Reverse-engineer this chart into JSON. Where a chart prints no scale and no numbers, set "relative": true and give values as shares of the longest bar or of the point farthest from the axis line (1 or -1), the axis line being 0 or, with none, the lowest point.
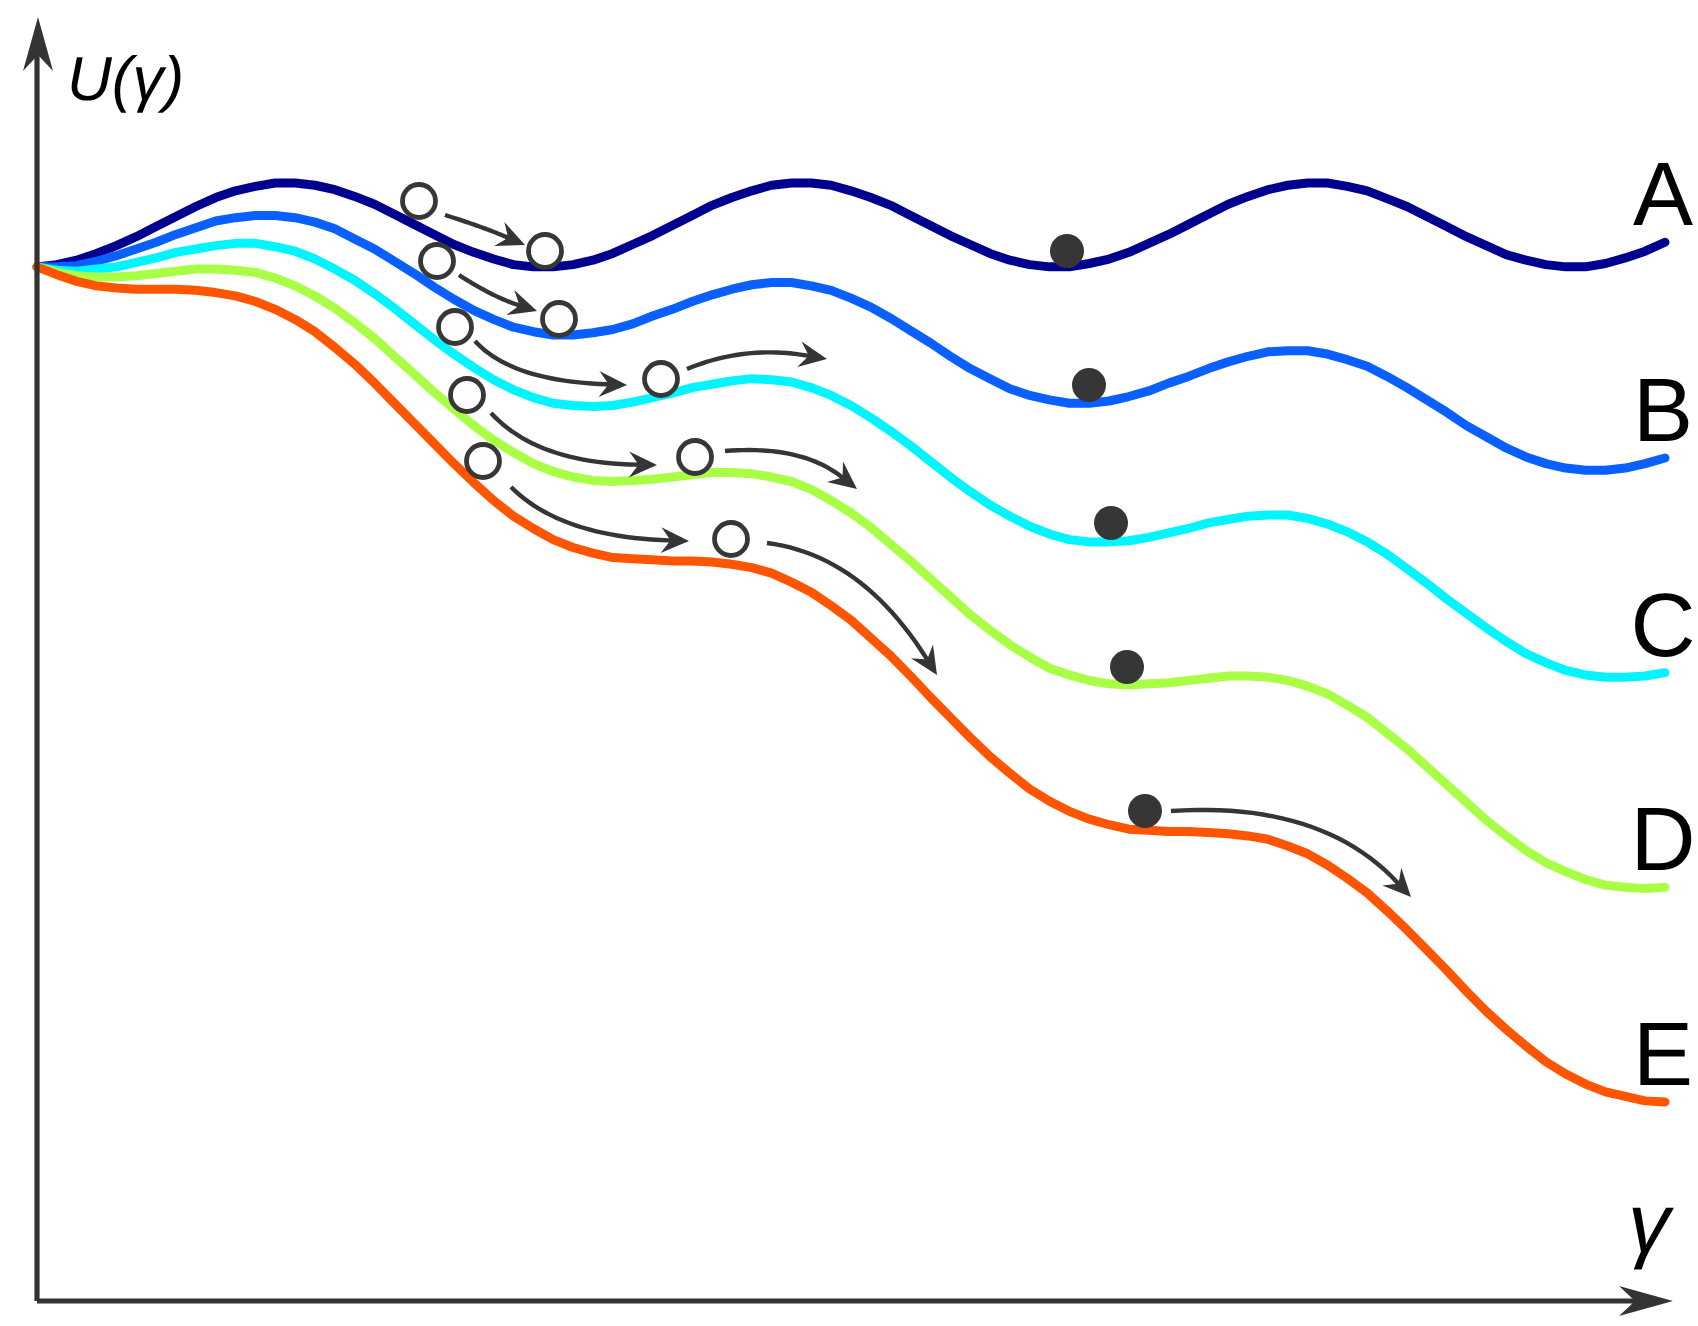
{
  "chart_data": {
    "type": "line",
    "relative": true,
    "xlabel": "γ",
    "ylabel": "U(γ)",
    "categories": [
      null,
      null,
      null,
      null,
      null,
      null,
      null,
      null,
      null,
      null,
      null,
      null,
      null,
      null,
      null,
      null,
      null,
      null,
      null,
      null,
      null,
      null,
      null,
      null,
      null,
      null,
      null,
      null,
      null,
      null,
      null,
      null,
      null,
      null,
      null,
      null,
      null,
      null,
      null,
      null,
      null,
      null,
      null,
      null,
      null,
      null,
      null,
      null,
      null,
      null,
      null,
      null,
      null,
      null,
      null,
      null,
      null,
      null,
      null,
      null,
      null,
      null,
      null,
      null,
      null,
      null,
      null,
      null,
      null,
      null,
      null,
      null,
      null,
      null,
      null,
      null,
      null,
      null,
      null,
      null,
      null,
      null,
      null
    ],
    "series": [
      {
        "name": "A",
        "color": "#00008f",
        "values": [
          0.925,
          0.927,
          0.931,
          0.937,
          0.944,
          0.952,
          0.961,
          0.97,
          0.979,
          0.987,
          0.993,
          0.997,
          1.0,
          1.0,
          0.998,
          0.994,
          0.988,
          0.981,
          0.972,
          0.963,
          0.954,
          0.945,
          0.938,
          0.932,
          0.927,
          0.925,
          0.925,
          0.927,
          0.931,
          0.937,
          0.945,
          0.953,
          0.962,
          0.971,
          0.98,
          0.987,
          0.993,
          0.998,
          1.0,
          1.0,
          0.998,
          0.993,
          0.987,
          0.98,
          0.971,
          0.962,
          0.953,
          0.945,
          0.937,
          0.931,
          0.927,
          0.925,
          0.925,
          0.928,
          0.932,
          0.938,
          0.946,
          0.954,
          0.963,
          0.972,
          0.981,
          0.988,
          0.994,
          0.998,
          1.0,
          1.0,
          0.997,
          0.993,
          0.986,
          0.979,
          0.97,
          0.961,
          0.952,
          0.944,
          0.936,
          0.931,
          0.927,
          0.925,
          0.925,
          0.928,
          0.933,
          0.939,
          0.947
        ]
      },
      {
        "name": "B",
        "color": "#0a5fff",
        "values": [
          0.925,
          0.925,
          0.926,
          0.93,
          0.935,
          0.941,
          0.947,
          0.954,
          0.96,
          0.966,
          0.969,
          0.971,
          0.971,
          0.969,
          0.965,
          0.959,
          0.95,
          0.941,
          0.93,
          0.919,
          0.907,
          0.896,
          0.886,
          0.878,
          0.871,
          0.867,
          0.864,
          0.864,
          0.866,
          0.869,
          0.874,
          0.881,
          0.887,
          0.894,
          0.9,
          0.905,
          0.909,
          0.911,
          0.911,
          0.908,
          0.904,
          0.897,
          0.889,
          0.879,
          0.868,
          0.857,
          0.845,
          0.834,
          0.825,
          0.816,
          0.81,
          0.806,
          0.803,
          0.803,
          0.805,
          0.809,
          0.814,
          0.821,
          0.827,
          0.834,
          0.84,
          0.845,
          0.849,
          0.85,
          0.85,
          0.847,
          0.842,
          0.836,
          0.827,
          0.817,
          0.806,
          0.795,
          0.783,
          0.773,
          0.763,
          0.755,
          0.749,
          0.745,
          0.743,
          0.743,
          0.745,
          0.749,
          0.754
        ]
      },
      {
        "name": "C",
        "color": "#00f5ff",
        "values": [
          0.925,
          0.922,
          0.921,
          0.923,
          0.925,
          0.929,
          0.933,
          0.938,
          0.941,
          0.944,
          0.946,
          0.946,
          0.943,
          0.939,
          0.932,
          0.923,
          0.913,
          0.901,
          0.888,
          0.874,
          0.86,
          0.847,
          0.835,
          0.824,
          0.815,
          0.808,
          0.803,
          0.801,
          0.8,
          0.801,
          0.804,
          0.808,
          0.812,
          0.817,
          0.82,
          0.823,
          0.825,
          0.824,
          0.822,
          0.817,
          0.81,
          0.801,
          0.79,
          0.778,
          0.765,
          0.751,
          0.737,
          0.724,
          0.712,
          0.702,
          0.693,
          0.686,
          0.681,
          0.679,
          0.679,
          0.68,
          0.683,
          0.687,
          0.691,
          0.696,
          0.699,
          0.702,
          0.703,
          0.703,
          0.7,
          0.695,
          0.688,
          0.679,
          0.668,
          0.655,
          0.642,
          0.628,
          0.615,
          0.602,
          0.59,
          0.579,
          0.571,
          0.564,
          0.56,
          0.558,
          0.558,
          0.559,
          0.562
        ]
      },
      {
        "name": "D",
        "color": "#a8ff45",
        "values": [
          0.925,
          0.92,
          0.917,
          0.916,
          0.916,
          0.917,
          0.919,
          0.921,
          0.923,
          0.923,
          0.922,
          0.92,
          0.915,
          0.908,
          0.899,
          0.888,
          0.875,
          0.861,
          0.845,
          0.829,
          0.813,
          0.798,
          0.783,
          0.77,
          0.759,
          0.749,
          0.742,
          0.737,
          0.734,
          0.733,
          0.734,
          0.735,
          0.737,
          0.739,
          0.741,
          0.741,
          0.74,
          0.737,
          0.733,
          0.726,
          0.716,
          0.705,
          0.692,
          0.677,
          0.662,
          0.646,
          0.63,
          0.614,
          0.6,
          0.587,
          0.576,
          0.566,
          0.56,
          0.555,
          0.552,
          0.551,
          0.552,
          0.553,
          0.555,
          0.557,
          0.559,
          0.559,
          0.558,
          0.555,
          0.55,
          0.543,
          0.533,
          0.522,
          0.508,
          0.494,
          0.478,
          0.462,
          0.446,
          0.43,
          0.416,
          0.403,
          0.392,
          0.384,
          0.377,
          0.372,
          0.37,
          0.369,
          0.37
        ]
      },
      {
        "name": "E",
        "color": "#ff5500",
        "values": [
          0.925,
          0.918,
          0.912,
          0.908,
          0.906,
          0.905,
          0.905,
          0.905,
          0.904,
          0.902,
          0.899,
          0.894,
          0.887,
          0.878,
          0.867,
          0.853,
          0.838,
          0.821,
          0.803,
          0.785,
          0.767,
          0.749,
          0.732,
          0.716,
          0.702,
          0.691,
          0.681,
          0.674,
          0.669,
          0.665,
          0.664,
          0.663,
          0.662,
          0.662,
          0.661,
          0.659,
          0.656,
          0.651,
          0.643,
          0.634,
          0.622,
          0.609,
          0.593,
          0.577,
          0.559,
          0.54,
          0.522,
          0.504,
          0.487,
          0.472,
          0.458,
          0.447,
          0.438,
          0.431,
          0.426,
          0.422,
          0.421,
          0.42,
          0.42,
          0.419,
          0.418,
          0.416,
          0.413,
          0.407,
          0.4,
          0.39,
          0.378,
          0.365,
          0.349,
          0.332,
          0.314,
          0.296,
          0.277,
          0.259,
          0.243,
          0.228,
          0.214,
          0.203,
          0.194,
          0.187,
          0.183,
          0.179,
          0.178
        ]
      }
    ]
  }
}
